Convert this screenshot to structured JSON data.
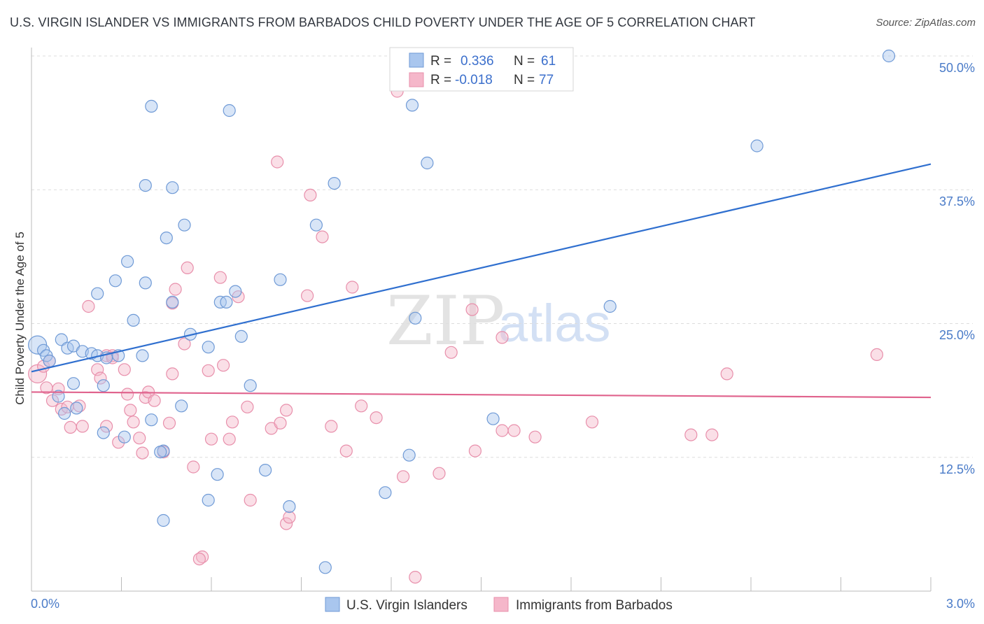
{
  "title": "U.S. VIRGIN ISLANDER VS IMMIGRANTS FROM BARBADOS CHILD POVERTY UNDER THE AGE OF 5 CORRELATION CHART",
  "source": "Source: ZipAtlas.com",
  "watermark": {
    "zip": "ZIP",
    "atlas": "atlas"
  },
  "colors": {
    "blue_fill": "#a9c6ee",
    "blue_stroke": "#6f9ad6",
    "blue_line": "#2f6fcf",
    "pink_fill": "#f5b7ca",
    "pink_stroke": "#e88fab",
    "pink_line": "#e0638d",
    "tick_text": "#4a7bc8",
    "grid": "#dddddd"
  },
  "legend": {
    "rows": [
      {
        "r_label": "R =",
        "r_value": "0.336",
        "n_label": "N =",
        "n_value": "61"
      },
      {
        "r_label": "R =",
        "r_value": "-0.018",
        "n_label": "N =",
        "n_value": "77"
      }
    ]
  },
  "chart_data": {
    "type": "scatter",
    "title": "U.S. VIRGIN ISLANDER VS IMMIGRANTS FROM BARBADOS CHILD POVERTY UNDER THE AGE OF 5 CORRELATION CHART",
    "xlabel": "",
    "ylabel": "Child Poverty Under the Age of 5",
    "xlim": [
      0,
      3.0
    ],
    "ylim": [
      0,
      50
    ],
    "x_tick_labels": [
      "0.0%",
      "3.0%"
    ],
    "y_ticks": [
      12.5,
      25.0,
      37.5,
      50.0
    ],
    "y_tick_labels": [
      "12.5%",
      "25.0%",
      "37.5%",
      "50.0%"
    ],
    "grid": true,
    "legend_position": "top-center",
    "series": [
      {
        "name": "U.S. Virgin Islanders",
        "color": "#a9c6ee",
        "trend": {
          "x": [
            0,
            3.0
          ],
          "y": [
            20.5,
            39.9
          ]
        },
        "points": [
          [
            0.02,
            23.0
          ],
          [
            0.04,
            22.5
          ],
          [
            0.05,
            22.0
          ],
          [
            0.06,
            21.5
          ],
          [
            0.1,
            23.5
          ],
          [
            0.12,
            22.7
          ],
          [
            0.14,
            22.9
          ],
          [
            0.17,
            22.4
          ],
          [
            0.2,
            22.2
          ],
          [
            0.22,
            22.0
          ],
          [
            0.25,
            21.8
          ],
          [
            0.29,
            22.0
          ],
          [
            0.14,
            19.4
          ],
          [
            0.09,
            18.2
          ],
          [
            0.11,
            16.6
          ],
          [
            0.15,
            17.1
          ],
          [
            0.24,
            19.2
          ],
          [
            0.4,
            45.3
          ],
          [
            0.38,
            37.9
          ],
          [
            0.47,
            37.7
          ],
          [
            0.45,
            33.0
          ],
          [
            0.51,
            34.2
          ],
          [
            0.32,
            30.8
          ],
          [
            0.28,
            29.0
          ],
          [
            0.38,
            28.8
          ],
          [
            0.22,
            27.8
          ],
          [
            0.34,
            25.3
          ],
          [
            0.47,
            27.0
          ],
          [
            0.53,
            24.0
          ],
          [
            0.37,
            22.0
          ],
          [
            0.59,
            22.8
          ],
          [
            0.63,
            27.0
          ],
          [
            0.65,
            27.0
          ],
          [
            0.68,
            28.0
          ],
          [
            0.7,
            23.8
          ],
          [
            0.73,
            19.2
          ],
          [
            0.66,
            44.9
          ],
          [
            1.27,
            45.4
          ],
          [
            1.32,
            40.0
          ],
          [
            1.01,
            38.1
          ],
          [
            0.95,
            34.2
          ],
          [
            0.83,
            29.1
          ],
          [
            1.28,
            25.5
          ],
          [
            1.54,
            16.1
          ],
          [
            1.93,
            26.6
          ],
          [
            2.42,
            41.6
          ],
          [
            2.86,
            50.0
          ],
          [
            0.31,
            14.4
          ],
          [
            0.24,
            14.8
          ],
          [
            0.4,
            16.0
          ],
          [
            0.44,
            13.1
          ],
          [
            0.5,
            17.3
          ],
          [
            0.62,
            10.9
          ],
          [
            0.78,
            11.3
          ],
          [
            0.59,
            8.5
          ],
          [
            0.86,
            7.9
          ],
          [
            1.18,
            9.2
          ],
          [
            1.26,
            12.7
          ],
          [
            0.44,
            6.6
          ],
          [
            0.98,
            2.2
          ],
          [
            0.43,
            13.0
          ]
        ]
      },
      {
        "name": "Immigrants from Barbados",
        "color": "#f5b7ca",
        "trend": {
          "x": [
            0,
            3.0
          ],
          "y": [
            18.6,
            18.1
          ]
        },
        "points": [
          [
            0.02,
            20.3
          ],
          [
            0.04,
            21.0
          ],
          [
            0.06,
            21.5
          ],
          [
            0.07,
            17.8
          ],
          [
            0.05,
            19.0
          ],
          [
            0.09,
            18.9
          ],
          [
            0.1,
            17.0
          ],
          [
            0.12,
            17.2
          ],
          [
            0.13,
            15.3
          ],
          [
            0.16,
            17.3
          ],
          [
            0.17,
            15.4
          ],
          [
            0.19,
            26.6
          ],
          [
            0.22,
            20.7
          ],
          [
            0.23,
            19.9
          ],
          [
            0.25,
            15.4
          ],
          [
            0.25,
            22.0
          ],
          [
            0.27,
            22.0
          ],
          [
            0.27,
            21.8
          ],
          [
            0.29,
            13.9
          ],
          [
            0.31,
            20.7
          ],
          [
            0.32,
            18.4
          ],
          [
            0.33,
            16.9
          ],
          [
            0.34,
            15.8
          ],
          [
            0.36,
            14.3
          ],
          [
            0.38,
            18.1
          ],
          [
            0.39,
            18.6
          ],
          [
            0.41,
            17.8
          ],
          [
            0.44,
            13.0
          ],
          [
            0.46,
            15.7
          ],
          [
            0.47,
            26.9
          ],
          [
            0.48,
            28.2
          ],
          [
            0.47,
            20.3
          ],
          [
            0.51,
            23.1
          ],
          [
            0.52,
            30.2
          ],
          [
            0.54,
            11.6
          ],
          [
            0.57,
            3.2
          ],
          [
            0.59,
            20.6
          ],
          [
            0.6,
            14.2
          ],
          [
            0.63,
            29.3
          ],
          [
            0.64,
            21.1
          ],
          [
            0.66,
            14.2
          ],
          [
            0.67,
            15.8
          ],
          [
            0.69,
            27.5
          ],
          [
            0.72,
            17.2
          ],
          [
            0.73,
            8.5
          ],
          [
            0.82,
            40.1
          ],
          [
            0.8,
            15.2
          ],
          [
            0.83,
            15.7
          ],
          [
            0.85,
            6.3
          ],
          [
            0.85,
            16.9
          ],
          [
            0.86,
            6.9
          ],
          [
            0.93,
            37.0
          ],
          [
            0.92,
            27.6
          ],
          [
            0.97,
            33.1
          ],
          [
            1.0,
            15.4
          ],
          [
            1.05,
            13.1
          ],
          [
            1.07,
            28.4
          ],
          [
            1.1,
            17.3
          ],
          [
            1.15,
            16.2
          ],
          [
            1.22,
            46.7
          ],
          [
            1.24,
            10.7
          ],
          [
            1.28,
            1.3
          ],
          [
            1.36,
            11.0
          ],
          [
            1.4,
            22.3
          ],
          [
            1.48,
            13.1
          ],
          [
            1.47,
            26.3
          ],
          [
            1.57,
            15.0
          ],
          [
            1.61,
            15.0
          ],
          [
            1.57,
            23.7
          ],
          [
            1.68,
            14.4
          ],
          [
            1.87,
            15.8
          ],
          [
            2.2,
            14.6
          ],
          [
            2.27,
            14.6
          ],
          [
            2.32,
            20.3
          ],
          [
            2.82,
            22.1
          ],
          [
            0.56,
            3.0
          ],
          [
            0.37,
            12.9
          ]
        ]
      }
    ]
  }
}
